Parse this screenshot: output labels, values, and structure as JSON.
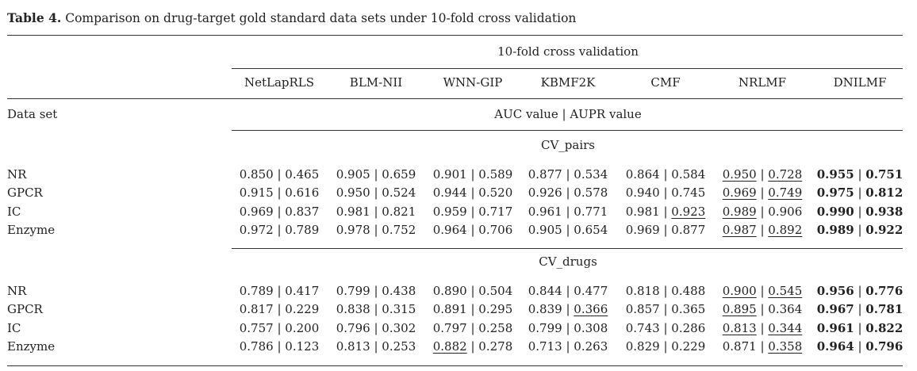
{
  "caption": {
    "label": "Table 4.",
    "text": "Comparison on drug-target gold standard data sets under 10-fold cross validation"
  },
  "header": {
    "group": "10-fold cross validation",
    "methods": [
      "NetLapRLS",
      "BLM-NII",
      "WNN-GIP",
      "KBMF2K",
      "CMF",
      "NRLMF",
      "DNILMF"
    ],
    "row_label": "Data set",
    "metric": "AUC value | AUPR value"
  },
  "sections": [
    {
      "title": "CV_pairs",
      "rows": [
        {
          "name": "NR",
          "cells": [
            {
              "auc": "0.850",
              "aupr": "0.465"
            },
            {
              "auc": "0.905",
              "aupr": "0.659"
            },
            {
              "auc": "0.901",
              "aupr": "0.589"
            },
            {
              "auc": "0.877",
              "aupr": "0.534"
            },
            {
              "auc": "0.864",
              "aupr": "0.584"
            },
            {
              "auc": "0.950",
              "aupr": "0.728",
              "auc_u": true,
              "aupr_u": true
            },
            {
              "auc": "0.955",
              "aupr": "0.751",
              "auc_b": true,
              "aupr_b": true
            }
          ]
        },
        {
          "name": "GPCR",
          "cells": [
            {
              "auc": "0.915",
              "aupr": "0.616"
            },
            {
              "auc": "0.950",
              "aupr": "0.524"
            },
            {
              "auc": "0.944",
              "aupr": "0.520"
            },
            {
              "auc": "0.926",
              "aupr": "0.578"
            },
            {
              "auc": "0.940",
              "aupr": "0.745"
            },
            {
              "auc": "0.969",
              "aupr": "0.749",
              "auc_u": true,
              "aupr_u": true
            },
            {
              "auc": "0.975",
              "aupr": "0.812",
              "auc_b": true,
              "aupr_b": true
            }
          ]
        },
        {
          "name": "IC",
          "cells": [
            {
              "auc": "0.969",
              "aupr": "0.837"
            },
            {
              "auc": "0.981",
              "aupr": "0.821"
            },
            {
              "auc": "0.959",
              "aupr": "0.717"
            },
            {
              "auc": "0.961",
              "aupr": "0.771"
            },
            {
              "auc": "0.981",
              "aupr": "0.923",
              "aupr_u": true
            },
            {
              "auc": "0.989",
              "aupr": "0.906",
              "auc_u": true
            },
            {
              "auc": "0.990",
              "aupr": "0.938",
              "auc_b": true,
              "aupr_b": true
            }
          ]
        },
        {
          "name": "Enzyme",
          "cells": [
            {
              "auc": "0.972",
              "aupr": "0.789"
            },
            {
              "auc": "0.978",
              "aupr": "0.752"
            },
            {
              "auc": "0.964",
              "aupr": "0.706"
            },
            {
              "auc": "0.905",
              "aupr": "0.654"
            },
            {
              "auc": "0.969",
              "aupr": "0.877"
            },
            {
              "auc": "0.987",
              "aupr": "0.892",
              "auc_u": true,
              "aupr_u": true
            },
            {
              "auc": "0.989",
              "aupr": "0.922",
              "auc_b": true,
              "aupr_b": true
            }
          ]
        }
      ]
    },
    {
      "title": "CV_drugs",
      "rows": [
        {
          "name": "NR",
          "cells": [
            {
              "auc": "0.789",
              "aupr": "0.417"
            },
            {
              "auc": "0.799",
              "aupr": "0.438"
            },
            {
              "auc": "0.890",
              "aupr": "0.504"
            },
            {
              "auc": "0.844",
              "aupr": "0.477"
            },
            {
              "auc": "0.818",
              "aupr": "0.488"
            },
            {
              "auc": "0.900",
              "aupr": "0.545",
              "auc_u": true,
              "aupr_u": true
            },
            {
              "auc": "0.956",
              "aupr": "0.776",
              "auc_b": true,
              "aupr_b": true
            }
          ]
        },
        {
          "name": "GPCR",
          "cells": [
            {
              "auc": "0.817",
              "aupr": "0.229"
            },
            {
              "auc": "0.838",
              "aupr": "0.315"
            },
            {
              "auc": "0.891",
              "aupr": "0.295"
            },
            {
              "auc": "0.839",
              "aupr": "0.366",
              "aupr_u": true
            },
            {
              "auc": "0.857",
              "aupr": "0.365"
            },
            {
              "auc": "0.895",
              "aupr": "0.364",
              "auc_u": true
            },
            {
              "auc": "0.967",
              "aupr": "0.781",
              "auc_b": true,
              "aupr_b": true
            }
          ]
        },
        {
          "name": "IC",
          "cells": [
            {
              "auc": "0.757",
              "aupr": "0.200"
            },
            {
              "auc": "0.796",
              "aupr": "0.302"
            },
            {
              "auc": "0.797",
              "aupr": "0.258"
            },
            {
              "auc": "0.799",
              "aupr": "0.308"
            },
            {
              "auc": "0.743",
              "aupr": "0.286"
            },
            {
              "auc": "0.813",
              "aupr": "0.344",
              "auc_u": true,
              "aupr_u": true
            },
            {
              "auc": "0.961",
              "aupr": "0.822",
              "auc_b": true,
              "aupr_b": true
            }
          ]
        },
        {
          "name": "Enzyme",
          "cells": [
            {
              "auc": "0.786",
              "aupr": "0.123"
            },
            {
              "auc": "0.813",
              "aupr": "0.253"
            },
            {
              "auc": "0.882",
              "aupr": "0.278",
              "auc_u": true
            },
            {
              "auc": "0.713",
              "aupr": "0.263"
            },
            {
              "auc": "0.829",
              "aupr": "0.229"
            },
            {
              "auc": "0.871",
              "aupr": "0.358",
              "aupr_u": true
            },
            {
              "auc": "0.964",
              "aupr": "0.796",
              "auc_b": true,
              "aupr_b": true
            }
          ]
        }
      ]
    }
  ]
}
